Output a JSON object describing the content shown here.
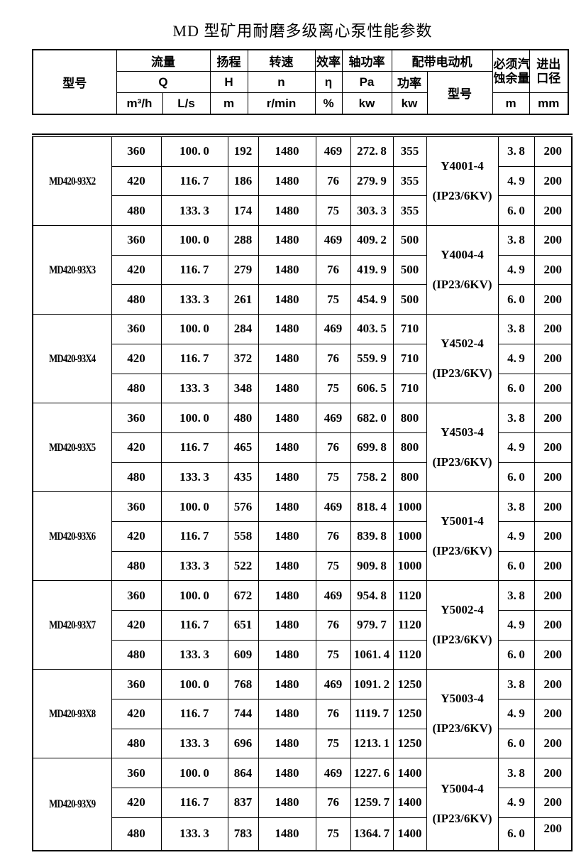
{
  "title": "MD 型矿用耐磨多级离心泵性能参数",
  "header": {
    "model_label": "型号",
    "flow_label": "流量",
    "flow_symbol": "Q",
    "flow_unit_1": "m³/h",
    "flow_unit_2": "L/s",
    "head_label": "扬程",
    "head_symbol": "H",
    "head_unit": "m",
    "speed_label": "转速",
    "speed_symbol": "n",
    "speed_unit": "r/min",
    "eff_label": "效率",
    "eff_symbol": "η",
    "eff_unit": "%",
    "shaft_label": "轴功率",
    "shaft_symbol": "Pa",
    "shaft_unit": "kw",
    "motor_label": "配带电动机",
    "motor_power_label": "功率",
    "motor_power_unit": "kw",
    "motor_model_label": "型号",
    "npsh_line1": "必须汽",
    "npsh_line2": "蚀余量",
    "npsh_unit": "m",
    "port_line1": "进出",
    "port_line2": "口径",
    "port_unit": "mm"
  },
  "groups": [
    {
      "model": "MD420-93X2",
      "motor": [
        "Y4001-4",
        "(IP23/6KV)"
      ],
      "rows": [
        [
          "360",
          "100.0",
          "192",
          "1480",
          "469",
          "272.8",
          "355",
          "3.8",
          "200"
        ],
        [
          "420",
          "116.7",
          "186",
          "1480",
          "76",
          "279.9",
          "355",
          "4.9",
          "200"
        ],
        [
          "480",
          "133.3",
          "174",
          "1480",
          "75",
          "303.3",
          "355",
          "6.0",
          "200"
        ]
      ]
    },
    {
      "model": "MD420-93X3",
      "motor": [
        "Y4004-4",
        "(IP23/6KV)"
      ],
      "rows": [
        [
          "360",
          "100.0",
          "288",
          "1480",
          "469",
          "409.2",
          "500",
          "3.8",
          "200"
        ],
        [
          "420",
          "116.7",
          "279",
          "1480",
          "76",
          "419.9",
          "500",
          "4.9",
          "200"
        ],
        [
          "480",
          "133.3",
          "261",
          "1480",
          "75",
          "454.9",
          "500",
          "6.0",
          "200"
        ]
      ]
    },
    {
      "model": "MD420-93X4",
      "motor": [
        "Y4502-4",
        "(IP23/6KV)"
      ],
      "rows": [
        [
          "360",
          "100.0",
          "284",
          "1480",
          "469",
          "403.5",
          "710",
          "3.8",
          "200"
        ],
        [
          "420",
          "116.7",
          "372",
          "1480",
          "76",
          "559.9",
          "710",
          "4.9",
          "200"
        ],
        [
          "480",
          "133.3",
          "348",
          "1480",
          "75",
          "606.5",
          "710",
          "6.0",
          "200"
        ]
      ]
    },
    {
      "model": "MD420-93X5",
      "motor": [
        "Y4503-4",
        "(IP23/6KV)"
      ],
      "rows": [
        [
          "360",
          "100.0",
          "480",
          "1480",
          "469",
          "682.0",
          "800",
          "3.8",
          "200"
        ],
        [
          "420",
          "116.7",
          "465",
          "1480",
          "76",
          "699.8",
          "800",
          "4.9",
          "200"
        ],
        [
          "480",
          "133.3",
          "435",
          "1480",
          "75",
          "758.2",
          "800",
          "6.0",
          "200"
        ]
      ]
    },
    {
      "model": "MD420-93X6",
      "motor": [
        "Y5001-4",
        "(IP23/6KV)"
      ],
      "rows": [
        [
          "360",
          "100.0",
          "576",
          "1480",
          "469",
          "818.4",
          "1000",
          "3.8",
          "200"
        ],
        [
          "420",
          "116.7",
          "558",
          "1480",
          "76",
          "839.8",
          "1000",
          "4.9",
          "200"
        ],
        [
          "480",
          "133.3",
          "522",
          "1480",
          "75",
          "909.8",
          "1000",
          "6.0",
          "200"
        ]
      ]
    },
    {
      "model": "MD420-93X7",
      "motor": [
        "Y5002-4",
        "(IP23/6KV)"
      ],
      "rows": [
        [
          "360",
          "100.0",
          "672",
          "1480",
          "469",
          "954.8",
          "1120",
          "3.8",
          "200"
        ],
        [
          "420",
          "116.7",
          "651",
          "1480",
          "76",
          "979.7",
          "1120",
          "4.9",
          "200"
        ],
        [
          "480",
          "133.3",
          "609",
          "1480",
          "75",
          "1061.4",
          "1120",
          "6.0",
          "200"
        ]
      ]
    },
    {
      "model": "MD420-93X8",
      "motor": [
        "Y5003-4",
        "(IP23/6KV)"
      ],
      "rows": [
        [
          "360",
          "100.0",
          "768",
          "1480",
          "469",
          "1091.2",
          "1250",
          "3.8",
          "200"
        ],
        [
          "420",
          "116.7",
          "744",
          "1480",
          "76",
          "1119.7",
          "1250",
          "4.9",
          "200"
        ],
        [
          "480",
          "133.3",
          "696",
          "1480",
          "75",
          "1213.1",
          "1250",
          "6.0",
          "200"
        ]
      ]
    },
    {
      "model": "MD420-93X9",
      "motor": [
        "Y5004-4",
        "(IP23/6KV)"
      ],
      "rows": [
        [
          "360",
          "100.0",
          "864",
          "1480",
          "469",
          "1227.6",
          "1400",
          "3.8",
          "200"
        ],
        [
          "420",
          "116.7",
          "837",
          "1480",
          "76",
          "1259.7",
          "1400",
          "4.9",
          "200"
        ],
        [
          "480",
          "133.3",
          "783",
          "1480",
          "75",
          "1364.7",
          "1400",
          "6.0",
          "200"
        ]
      ]
    }
  ]
}
